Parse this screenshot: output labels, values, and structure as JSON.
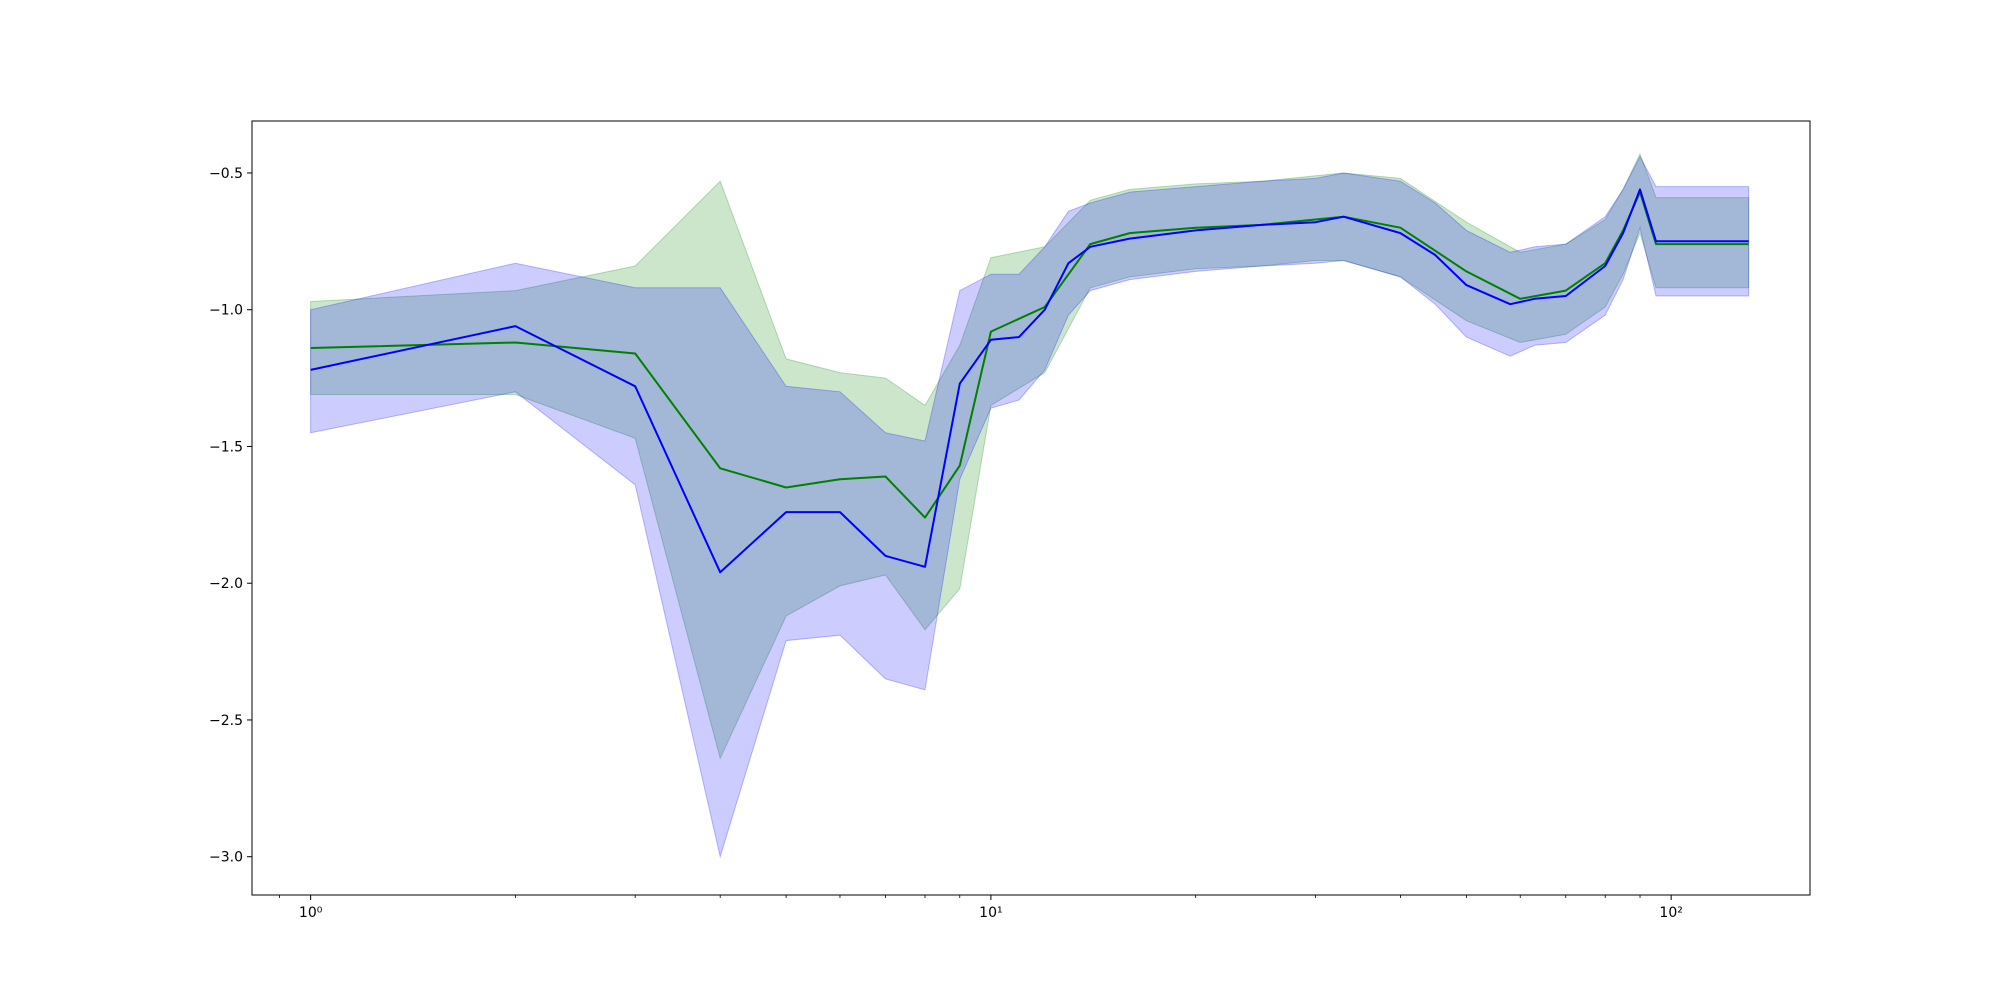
{
  "chart_data": {
    "type": "line",
    "title": "",
    "xlabel": "",
    "ylabel": "",
    "xscale": "log",
    "xlim": [
      0.82,
      160
    ],
    "ylim": [
      -3.14,
      -0.31
    ],
    "grid": false,
    "legend": "none",
    "xticks": [
      {
        "value": 1,
        "label": "10⁰"
      },
      {
        "value": 10,
        "label": "10¹"
      },
      {
        "value": 100,
        "label": "10²"
      }
    ],
    "yticks": [
      {
        "value": -0.5,
        "label": "−0.5"
      },
      {
        "value": -1.0,
        "label": "−1.0"
      },
      {
        "value": -1.5,
        "label": "−1.5"
      },
      {
        "value": -2.0,
        "label": "−2.0"
      },
      {
        "value": -2.5,
        "label": "−2.5"
      },
      {
        "value": -3.0,
        "label": "−3.0"
      }
    ],
    "series": [
      {
        "color": "#008000",
        "band_color": "#008000",
        "x": [
          1,
          2,
          3,
          4,
          5,
          6,
          7,
          8,
          9,
          10,
          12,
          14,
          16,
          20,
          25,
          30,
          33,
          40,
          50,
          60,
          70,
          80,
          85,
          90,
          95,
          130
        ],
        "mean": [
          -1.14,
          -1.12,
          -1.16,
          -1.58,
          -1.65,
          -1.62,
          -1.61,
          -1.76,
          -1.57,
          -1.08,
          -0.99,
          -0.76,
          -0.72,
          -0.7,
          -0.69,
          -0.67,
          -0.66,
          -0.7,
          -0.86,
          -0.96,
          -0.93,
          -0.83,
          -0.71,
          -0.57,
          -0.76,
          -0.76
        ],
        "lower": [
          -1.31,
          -1.31,
          -1.47,
          -2.64,
          -2.12,
          -2.01,
          -1.97,
          -2.17,
          -2.02,
          -1.35,
          -1.23,
          -0.92,
          -0.88,
          -0.85,
          -0.84,
          -0.82,
          -0.82,
          -0.88,
          -1.04,
          -1.12,
          -1.09,
          -0.99,
          -0.87,
          -0.72,
          -0.92,
          -0.92
        ],
        "upper": [
          -0.97,
          -0.93,
          -0.84,
          -0.53,
          -1.18,
          -1.23,
          -1.25,
          -1.35,
          -1.13,
          -0.81,
          -0.77,
          -0.6,
          -0.56,
          -0.54,
          -0.53,
          -0.51,
          -0.5,
          -0.52,
          -0.68,
          -0.79,
          -0.76,
          -0.67,
          -0.56,
          -0.43,
          -0.59,
          -0.59
        ]
      },
      {
        "color": "#0000ff",
        "band_color": "#0000ff",
        "x": [
          1,
          2,
          3,
          4,
          5,
          6,
          7,
          8,
          9,
          10,
          11,
          12,
          13,
          14,
          16,
          20,
          25,
          30,
          33,
          40,
          45,
          50,
          58,
          63,
          70,
          80,
          85,
          90,
          95,
          130
        ],
        "mean": [
          -1.22,
          -1.06,
          -1.28,
          -1.96,
          -1.74,
          -1.74,
          -1.9,
          -1.94,
          -1.27,
          -1.11,
          -1.1,
          -1.0,
          -0.83,
          -0.77,
          -0.74,
          -0.71,
          -0.69,
          -0.68,
          -0.66,
          -0.72,
          -0.8,
          -0.91,
          -0.98,
          -0.96,
          -0.95,
          -0.84,
          -0.72,
          -0.56,
          -0.75,
          -0.75
        ],
        "lower": [
          -1.45,
          -1.3,
          -1.64,
          -3.0,
          -2.21,
          -2.19,
          -2.35,
          -2.39,
          -1.62,
          -1.36,
          -1.33,
          -1.22,
          -1.02,
          -0.93,
          -0.89,
          -0.86,
          -0.84,
          -0.83,
          -0.82,
          -0.88,
          -0.98,
          -1.1,
          -1.17,
          -1.13,
          -1.12,
          -1.02,
          -0.89,
          -0.7,
          -0.95,
          -0.95
        ],
        "upper": [
          -1.0,
          -0.83,
          -0.92,
          -0.92,
          -1.28,
          -1.3,
          -1.45,
          -1.48,
          -0.93,
          -0.87,
          -0.87,
          -0.77,
          -0.64,
          -0.61,
          -0.57,
          -0.55,
          -0.53,
          -0.52,
          -0.5,
          -0.53,
          -0.61,
          -0.71,
          -0.79,
          -0.77,
          -0.76,
          -0.66,
          -0.56,
          -0.44,
          -0.55,
          -0.55
        ]
      }
    ]
  }
}
